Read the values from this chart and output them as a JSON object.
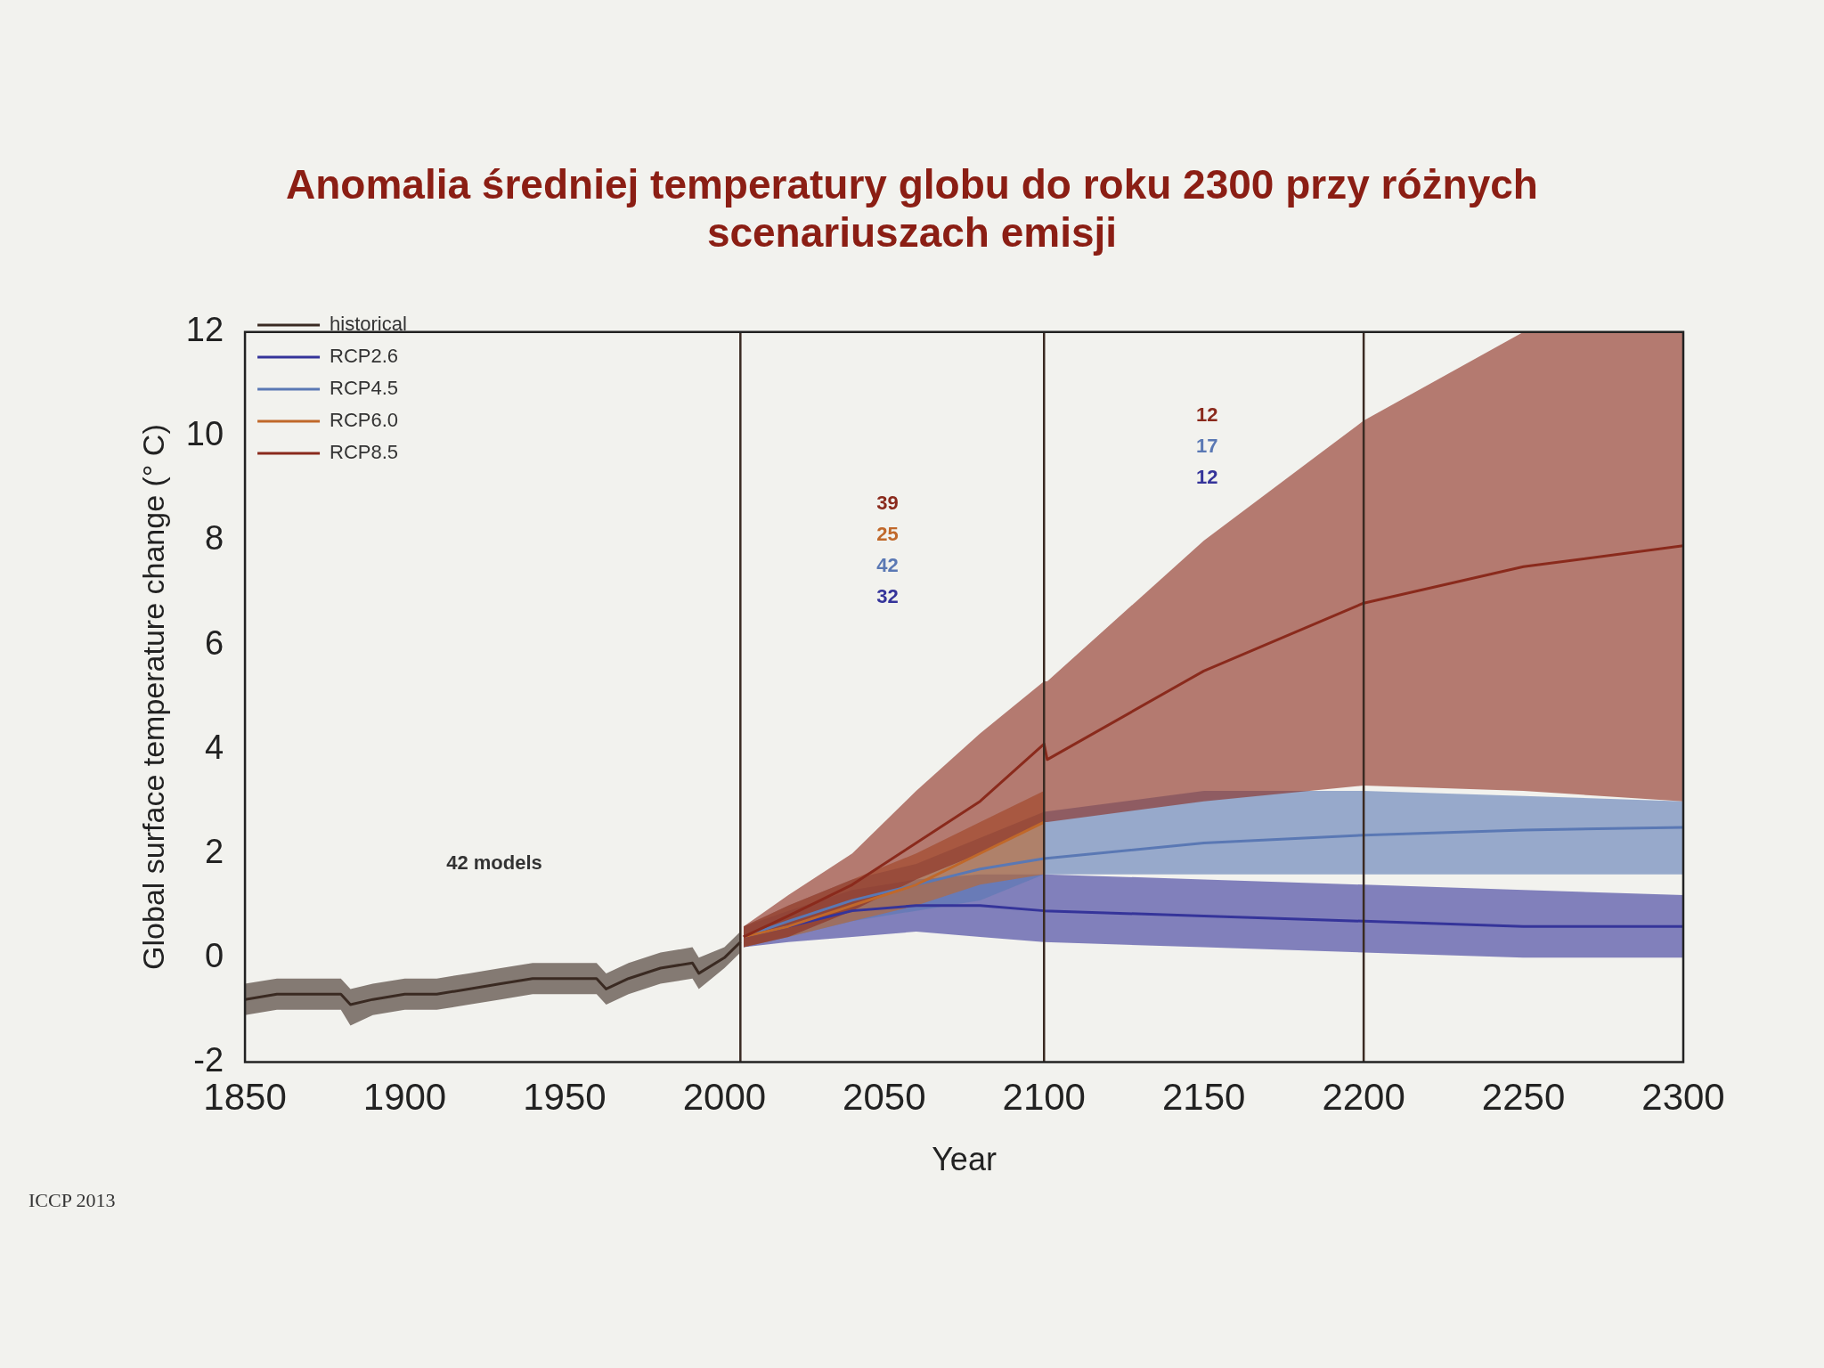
{
  "chart_data": {
    "type": "line",
    "title": "Anomalia średniej temperatury globu do roku 2300 przy różnych scenariuszach emisji",
    "xlabel": "Year",
    "ylabel": "Global surface temperature change (° C)",
    "xlim": [
      1850,
      2300
    ],
    "xticks": [
      1850,
      1900,
      1950,
      2000,
      2050,
      2100,
      2150,
      2200,
      2250,
      2300
    ],
    "ylim": [
      -2,
      12
    ],
    "yticks": [
      -2,
      0,
      2,
      4,
      6,
      8,
      10,
      12
    ],
    "grid": false,
    "legend": "top left",
    "series": [
      {
        "name": "historical",
        "color": "#3a2a22",
        "x": [
          1850,
          1860,
          1870,
          1880,
          1883,
          1890,
          1900,
          1910,
          1920,
          1930,
          1940,
          1950,
          1960,
          1963,
          1970,
          1980,
          1990,
          1992,
          2000,
          2005
        ],
        "values": [
          -0.8,
          -0.7,
          -0.7,
          -0.7,
          -0.9,
          -0.8,
          -0.7,
          -0.7,
          -0.6,
          -0.5,
          -0.4,
          -0.4,
          -0.4,
          -0.6,
          -0.4,
          -0.2,
          -0.1,
          -0.3,
          0.0,
          0.3
        ],
        "lower": [
          -1.1,
          -1.0,
          -1.0,
          -1.0,
          -1.3,
          -1.1,
          -1.0,
          -1.0,
          -0.9,
          -0.8,
          -0.7,
          -0.7,
          -0.7,
          -0.9,
          -0.7,
          -0.5,
          -0.4,
          -0.6,
          -0.2,
          0.1
        ],
        "upper": [
          -0.5,
          -0.4,
          -0.4,
          -0.4,
          -0.6,
          -0.5,
          -0.4,
          -0.4,
          -0.3,
          -0.2,
          -0.1,
          -0.1,
          -0.1,
          -0.3,
          -0.1,
          0.1,
          0.2,
          0.0,
          0.2,
          0.5
        ]
      },
      {
        "name": "RCP2.6",
        "color": "#35349a",
        "x": [
          2006,
          2020,
          2040,
          2060,
          2080,
          2100,
          2150,
          2200,
          2250,
          2300
        ],
        "values": [
          0.4,
          0.6,
          0.9,
          1.0,
          1.0,
          0.9,
          0.8,
          0.7,
          0.6,
          0.6
        ],
        "lower": [
          0.2,
          0.3,
          0.4,
          0.5,
          0.4,
          0.3,
          0.2,
          0.1,
          0.0,
          0.0
        ],
        "upper": [
          0.6,
          0.9,
          1.3,
          1.5,
          1.6,
          1.6,
          1.5,
          1.4,
          1.3,
          1.2
        ]
      },
      {
        "name": "RCP4.5",
        "color": "#5a78b4",
        "x": [
          2006,
          2020,
          2040,
          2060,
          2080,
          2100,
          2150,
          2200,
          2250,
          2300
        ],
        "values": [
          0.4,
          0.7,
          1.1,
          1.4,
          1.7,
          1.9,
          2.2,
          2.35,
          2.45,
          2.5
        ],
        "lower": [
          0.2,
          0.4,
          0.7,
          0.9,
          1.1,
          1.6,
          1.6,
          1.6,
          1.6,
          1.6
        ],
        "upper": [
          0.6,
          1.0,
          1.5,
          1.8,
          2.3,
          2.8,
          3.2,
          3.2,
          3.1,
          3.0
        ]
      },
      {
        "name": "RCP6.0",
        "color": "#c0682a",
        "x": [
          2006,
          2020,
          2040,
          2060,
          2080,
          2100
        ],
        "values": [
          0.4,
          0.6,
          1.0,
          1.4,
          2.0,
          2.6
        ],
        "lower": [
          0.2,
          0.4,
          0.7,
          1.0,
          1.4,
          1.6
        ],
        "upper": [
          0.6,
          1.0,
          1.5,
          2.0,
          2.6,
          3.2
        ]
      },
      {
        "name": "RCP8.5",
        "color": "#8a2a1c",
        "x": [
          2006,
          2020,
          2040,
          2060,
          2080,
          2100,
          2101,
          2150,
          2200,
          2250,
          2300
        ],
        "values": [
          0.4,
          0.8,
          1.4,
          2.2,
          3.0,
          4.1,
          3.8,
          5.5,
          6.8,
          7.5,
          7.9
        ],
        "lower": [
          0.2,
          0.4,
          0.9,
          1.5,
          2.0,
          2.6,
          2.6,
          3.0,
          3.3,
          3.2,
          3.0
        ],
        "upper": [
          0.6,
          1.2,
          2.0,
          3.2,
          4.3,
          5.3,
          5.3,
          8.0,
          10.3,
          12,
          12
        ]
      }
    ],
    "ref_lines": [
      {
        "axis": "x",
        "value": 2005,
        "color": "#3a2a22"
      },
      {
        "axis": "x",
        "value": 2100,
        "color": "#3a2a22"
      },
      {
        "axis": "x",
        "value": 2200,
        "color": "#3a2a22"
      }
    ],
    "annotations": [
      "39",
      "25",
      "42",
      "32",
      "12",
      "17",
      "12",
      "42 models",
      "ICCP 2013"
    ]
  }
}
